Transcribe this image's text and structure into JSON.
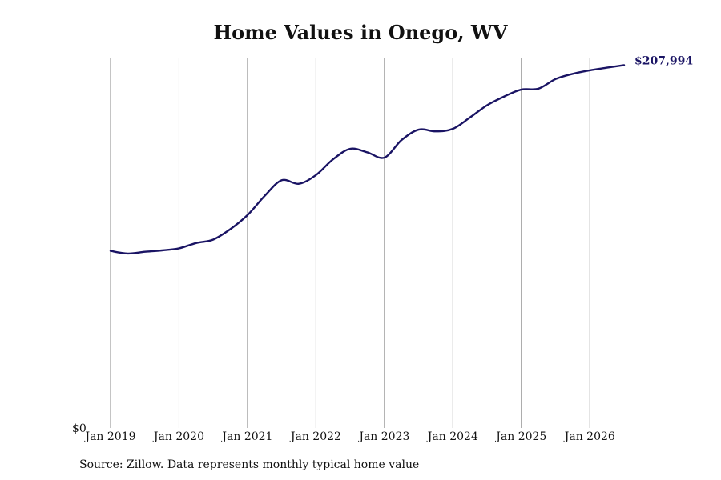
{
  "colors": {
    "series": "#1a1464",
    "grid": "#8a8a8a",
    "text": "#111111"
  },
  "chart_data": {
    "type": "line",
    "title": "Home Values in Onego, WV",
    "xlabel": "",
    "ylabel": "",
    "ylim": [
      0,
      210000
    ],
    "xlim": [
      "2019-01",
      "2026-07"
    ],
    "x_ticks": [
      "2019-01",
      "2020-01",
      "2021-01",
      "2022-01",
      "2023-01",
      "2024-01",
      "2025-01",
      "2026-01"
    ],
    "x_tick_labels": [
      "Jan 2019",
      "Jan 2020",
      "Jan 2021",
      "Jan 2022",
      "Jan 2023",
      "Jan 2024",
      "Jan 2025",
      "Jan 2026"
    ],
    "y_tick_labels": [
      "$0"
    ],
    "end_label": "$207,994",
    "grid": "vertical",
    "series": [
      {
        "x": [
          "2019-01",
          "2019-04",
          "2019-07",
          "2019-10",
          "2020-01",
          "2020-04",
          "2020-07",
          "2020-10",
          "2021-01",
          "2021-04",
          "2021-07",
          "2021-10",
          "2022-01",
          "2022-04",
          "2022-07",
          "2022-10",
          "2023-01",
          "2023-04",
          "2023-07",
          "2023-10",
          "2024-01",
          "2024-04",
          "2024-07",
          "2024-10",
          "2025-01",
          "2025-04",
          "2025-07",
          "2025-10",
          "2026-01",
          "2026-04",
          "2026-07"
        ],
        "values": [
          101500,
          100000,
          101000,
          101800,
          103000,
          106000,
          108000,
          114000,
          122000,
          133000,
          142000,
          140000,
          145000,
          154000,
          160000,
          158000,
          155000,
          165000,
          171000,
          170000,
          171500,
          178000,
          185000,
          190000,
          194000,
          194500,
          200000,
          203000,
          205000,
          206500,
          207994
        ]
      }
    ]
  },
  "footer": {
    "source": "Source: Zillow. Data represents monthly typical home value"
  }
}
